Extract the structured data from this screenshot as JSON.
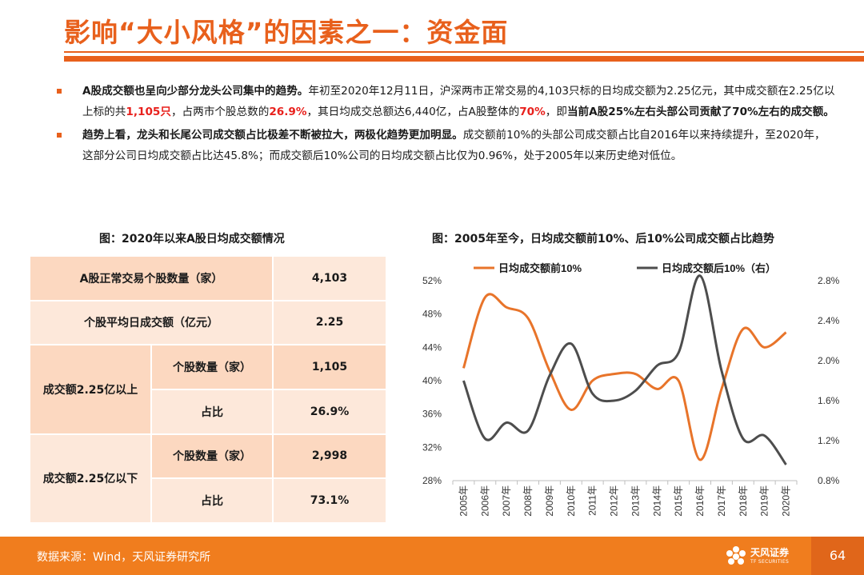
{
  "header": {
    "title": "影响“大小风格”的因素之一：资金面"
  },
  "bullets": [
    {
      "lead": "A股成交额也呈向少部分龙头公司集中的趋势。",
      "t1": "年初至2020年12月11日，沪深两市正常交易的4,103只标的日均成交额为2.25亿元，其中成交额在2.25亿以上标的共",
      "h1": "1,105只",
      "t2": "，占两市个股总数的",
      "h2": "26.9%",
      "t3": "，其日均成交总额达6,440亿，占A股整体的",
      "h3": "70%",
      "t4": "，即",
      "b4": "当前A股25%左右头部公司贡献了70%左右的成交额。"
    },
    {
      "lead": "趋势上看，龙头和长尾公司成交额占比极差不断被拉大，两极化趋势更加明显。",
      "t1": "成交额前10%的头部公司成交额占比自2016年以来持续提升，至2020年，这部分公司日均成交额占比达45.8%；而成交额后10%公司的日均成交额占比仅为0.96%，处于2005年以来历史绝对低位。"
    }
  ],
  "table": {
    "title": "图：2020年以来A股日均成交额情况",
    "row1": {
      "label": "A股正常交易个股数量（家）",
      "value": "4,103"
    },
    "row2": {
      "label": "个股平均日成交额（亿元）",
      "value": "2.25"
    },
    "above": {
      "label": "成交额2.25亿以上",
      "count_label": "个股数量（家）",
      "count": "1,105",
      "share_label": "占比",
      "share": "26.9%"
    },
    "below": {
      "label": "成交额2.25亿以下",
      "count_label": "个股数量（家）",
      "count": "2,998",
      "share_label": "占比",
      "share": "73.1%"
    }
  },
  "chart_data": {
    "type": "line",
    "title": "图：2005年至今，日均成交额前10%、后10%公司成交额占比趋势",
    "x": [
      "2005年",
      "2006年",
      "2007年",
      "2008年",
      "2009年",
      "2010年",
      "2011年",
      "2012年",
      "2013年",
      "2014年",
      "2015年",
      "2016年",
      "2017年",
      "2018年",
      "2019年",
      "2020年"
    ],
    "series": [
      {
        "name": "日均成交额前10%",
        "axis": "left",
        "color": "#e8742a",
        "values": [
          41.5,
          50.0,
          48.8,
          47.5,
          41.2,
          36.5,
          40.0,
          40.8,
          40.8,
          39.0,
          40.0,
          30.5,
          39.0,
          46.2,
          44.0,
          45.8
        ]
      },
      {
        "name": "日均成交额后10%（右）",
        "axis": "right",
        "color": "#4d4d4d",
        "values": [
          1.8,
          1.22,
          1.38,
          1.3,
          1.85,
          2.17,
          1.67,
          1.6,
          1.7,
          1.95,
          2.08,
          2.85,
          1.9,
          1.22,
          1.25,
          0.96
        ]
      }
    ],
    "yleft": {
      "ticks": [
        "28%",
        "32%",
        "36%",
        "40%",
        "44%",
        "48%",
        "52%"
      ],
      "range": [
        28,
        52
      ]
    },
    "yright": {
      "ticks": [
        "0.8%",
        "1.2%",
        "1.6%",
        "2.0%",
        "2.4%",
        "2.8%"
      ],
      "range": [
        0.8,
        2.8
      ]
    },
    "legend_position": "top",
    "grid": false
  },
  "footer": {
    "source": "数据来源：Wind，天风证券研究所",
    "logo_name": "天风证券",
    "logo_sub": "TF SECURITIES",
    "page": "64"
  },
  "colors": {
    "accent": "#e8601c",
    "footer": "#f07d1e",
    "highlight": "#e8201c",
    "table_head": "#fcd8c0",
    "table_value": "#fde8da"
  }
}
